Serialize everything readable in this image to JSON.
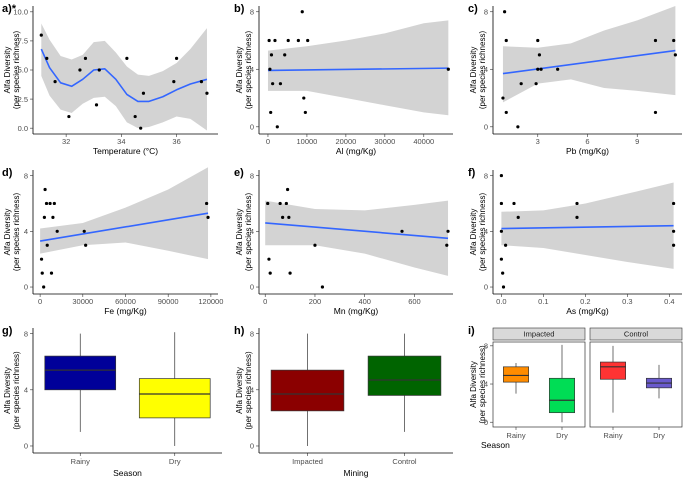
{
  "figure": {
    "ylabel_line1": "Alfa Diversity",
    "ylabel_line2": "(per species richness)",
    "fit_color": "#3366ff",
    "band_color": "#d3d3d3",
    "point_color": "#000000"
  },
  "chart_data": [
    {
      "id": "a",
      "panel_label": "a)*",
      "type": "scatter",
      "smooth": "loess",
      "xlabel": "Temperature (°C)",
      "xlim": [
        30.8,
        37.5
      ],
      "ylim": [
        -0.5,
        10.5
      ],
      "xticks": [
        32,
        34,
        36
      ],
      "yticks": [
        0,
        2.5,
        5,
        7.5,
        10
      ],
      "ytick_labels": [
        "0.0",
        "2.5",
        "5.0",
        "7.5",
        "10.0"
      ],
      "points": [
        [
          31.1,
          8
        ],
        [
          31.3,
          6
        ],
        [
          31.6,
          4
        ],
        [
          32.1,
          1
        ],
        [
          32.5,
          5
        ],
        [
          32.7,
          6
        ],
        [
          33.1,
          2
        ],
        [
          33.2,
          5
        ],
        [
          34.2,
          6
        ],
        [
          34.5,
          1
        ],
        [
          34.7,
          0
        ],
        [
          34.8,
          3
        ],
        [
          35.9,
          4
        ],
        [
          36.0,
          6
        ],
        [
          36.9,
          4
        ],
        [
          37.1,
          3
        ]
      ],
      "fit": [
        [
          31.1,
          6.8
        ],
        [
          31.4,
          5.2
        ],
        [
          31.8,
          3.9
        ],
        [
          32.2,
          3.6
        ],
        [
          32.6,
          4.2
        ],
        [
          33.0,
          5.0
        ],
        [
          33.4,
          5.1
        ],
        [
          33.8,
          4.2
        ],
        [
          34.2,
          2.9
        ],
        [
          34.6,
          2.3
        ],
        [
          35.0,
          2.3
        ],
        [
          35.5,
          2.7
        ],
        [
          36.0,
          3.3
        ],
        [
          36.5,
          3.8
        ],
        [
          37.1,
          4.2
        ]
      ],
      "band_upper": [
        [
          31.1,
          9.0
        ],
        [
          31.4,
          7.6
        ],
        [
          31.8,
          6.2
        ],
        [
          32.2,
          5.9
        ],
        [
          32.6,
          6.3
        ],
        [
          33.0,
          7.4
        ],
        [
          33.4,
          7.5
        ],
        [
          33.8,
          6.5
        ],
        [
          34.2,
          5.3
        ],
        [
          34.6,
          4.6
        ],
        [
          35.0,
          4.5
        ],
        [
          35.5,
          4.9
        ],
        [
          36.0,
          5.6
        ],
        [
          36.5,
          6.8
        ],
        [
          37.1,
          8.6
        ]
      ],
      "band_lower": [
        [
          31.1,
          4.5
        ],
        [
          31.4,
          2.8
        ],
        [
          31.8,
          1.6
        ],
        [
          32.2,
          1.3
        ],
        [
          32.6,
          2.1
        ],
        [
          33.0,
          2.6
        ],
        [
          33.4,
          2.7
        ],
        [
          33.8,
          1.9
        ],
        [
          34.2,
          0.5
        ],
        [
          34.6,
          0.0
        ],
        [
          35.0,
          0.1
        ],
        [
          35.5,
          0.5
        ],
        [
          36.0,
          1.0
        ],
        [
          36.5,
          0.8
        ],
        [
          37.1,
          -0.2
        ]
      ]
    },
    {
      "id": "b",
      "panel_label": "b)",
      "type": "scatter",
      "smooth": "lm",
      "xlabel": "Al (mg/Kg)",
      "xlim": [
        -2300,
        47500
      ],
      "ylim": [
        -0.5,
        8.4
      ],
      "xticks": [
        0,
        10000,
        20000,
        30000,
        40000
      ],
      "yticks": [
        0,
        4,
        8
      ],
      "points": [
        [
          300,
          6
        ],
        [
          500,
          4
        ],
        [
          700,
          1
        ],
        [
          900,
          5
        ],
        [
          1200,
          3
        ],
        [
          1800,
          6
        ],
        [
          2400,
          0
        ],
        [
          3200,
          3
        ],
        [
          4300,
          5
        ],
        [
          5200,
          6
        ],
        [
          7800,
          6
        ],
        [
          8800,
          8
        ],
        [
          9200,
          2
        ],
        [
          9600,
          1
        ],
        [
          10200,
          6
        ],
        [
          46300,
          4
        ]
      ],
      "fit": [
        [
          0,
          3.92
        ],
        [
          46300,
          4.08
        ]
      ],
      "band_upper": [
        [
          0,
          5.3
        ],
        [
          10000,
          5.6
        ],
        [
          20000,
          6.0
        ],
        [
          30000,
          6.5
        ],
        [
          40000,
          7.2
        ],
        [
          46300,
          7.4
        ]
      ],
      "band_lower": [
        [
          0,
          2.5
        ],
        [
          10000,
          2.5
        ],
        [
          20000,
          2.0
        ],
        [
          30000,
          1.5
        ],
        [
          40000,
          1.0
        ],
        [
          46300,
          0.8
        ]
      ]
    },
    {
      "id": "c",
      "panel_label": "c)",
      "type": "scatter",
      "smooth": "lm",
      "xlabel": "Pb (mg/Kg)",
      "xlim": [
        0.3,
        11.7
      ],
      "ylim": [
        -0.5,
        8.4
      ],
      "xticks": [
        3,
        6,
        9
      ],
      "yticks": [
        0,
        4,
        8
      ],
      "points": [
        [
          0.9,
          2
        ],
        [
          1.0,
          8
        ],
        [
          1.1,
          1
        ],
        [
          1.1,
          6
        ],
        [
          1.8,
          0
        ],
        [
          2.0,
          3
        ],
        [
          2.9,
          3
        ],
        [
          3.0,
          4
        ],
        [
          3.0,
          6
        ],
        [
          3.1,
          5
        ],
        [
          3.2,
          4
        ],
        [
          4.2,
          4
        ],
        [
          10.1,
          6
        ],
        [
          10.1,
          1
        ],
        [
          11.2,
          6
        ],
        [
          11.3,
          5
        ]
      ],
      "fit": [
        [
          0.9,
          3.7
        ],
        [
          11.3,
          5.3
        ]
      ],
      "band_upper": [
        [
          0.9,
          5.6
        ],
        [
          3,
          5.5
        ],
        [
          5,
          5.8
        ],
        [
          7,
          6.7
        ],
        [
          9,
          7.4
        ],
        [
          11.3,
          8.4
        ]
      ],
      "band_lower": [
        [
          0.9,
          1.7
        ],
        [
          3,
          3.0
        ],
        [
          5,
          3.3
        ],
        [
          7,
          2.7
        ],
        [
          9,
          2.5
        ],
        [
          11.3,
          2.2
        ]
      ]
    },
    {
      "id": "d",
      "panel_label": "d)",
      "type": "scatter",
      "smooth": "lm",
      "xlabel": "Fe (mg/Kg)",
      "xlim": [
        -5000,
        125000
      ],
      "ylim": [
        -0.5,
        8.4
      ],
      "xticks": [
        0,
        30000,
        60000,
        90000,
        120000
      ],
      "yticks": [
        0,
        4,
        8
      ],
      "points": [
        [
          1000,
          2
        ],
        [
          1500,
          1
        ],
        [
          2500,
          0
        ],
        [
          3000,
          5
        ],
        [
          3500,
          7
        ],
        [
          4500,
          6
        ],
        [
          5000,
          3
        ],
        [
          7000,
          6
        ],
        [
          8000,
          1
        ],
        [
          9000,
          5
        ],
        [
          10000,
          6
        ],
        [
          12000,
          4
        ],
        [
          31000,
          4
        ],
        [
          32000,
          3
        ],
        [
          117000,
          6
        ],
        [
          118000,
          5
        ]
      ],
      "fit": [
        [
          0,
          3.3
        ],
        [
          118000,
          5.3
        ]
      ],
      "band_upper": [
        [
          0,
          4.2
        ],
        [
          30000,
          4.6
        ],
        [
          60000,
          5.7
        ],
        [
          90000,
          7.0
        ],
        [
          118000,
          8.6
        ]
      ],
      "band_lower": [
        [
          0,
          2.4
        ],
        [
          30000,
          3.0
        ],
        [
          60000,
          3.2
        ],
        [
          90000,
          2.6
        ],
        [
          118000,
          2.0
        ]
      ]
    },
    {
      "id": "e",
      "panel_label": "e)",
      "type": "scatter",
      "smooth": "lm",
      "xlabel": "Mn (mg/Kg)",
      "xlim": [
        -25,
        755
      ],
      "ylim": [
        -0.5,
        8.4
      ],
      "xticks": [
        0,
        200,
        400,
        600
      ],
      "yticks": [
        0,
        4,
        8
      ],
      "points": [
        [
          10,
          6
        ],
        [
          15,
          2
        ],
        [
          20,
          1
        ],
        [
          60,
          6
        ],
        [
          70,
          5
        ],
        [
          85,
          6
        ],
        [
          90,
          7
        ],
        [
          95,
          5
        ],
        [
          100,
          1
        ],
        [
          200,
          3
        ],
        [
          230,
          0
        ],
        [
          550,
          4
        ],
        [
          730,
          3
        ],
        [
          735,
          4
        ]
      ],
      "fit": [
        [
          0,
          4.6
        ],
        [
          735,
          3.5
        ]
      ],
      "band_upper": [
        [
          0,
          6.2
        ],
        [
          200,
          5.6
        ],
        [
          400,
          5.5
        ],
        [
          600,
          5.9
        ],
        [
          735,
          6.2
        ]
      ],
      "band_lower": [
        [
          0,
          3.0
        ],
        [
          200,
          3.0
        ],
        [
          400,
          2.4
        ],
        [
          600,
          1.4
        ],
        [
          735,
          0.8
        ]
      ]
    },
    {
      "id": "f",
      "panel_label": "f)",
      "type": "scatter",
      "smooth": "lm",
      "xlabel": "As (mg/Kg)",
      "xlim": [
        -0.02,
        0.43
      ],
      "ylim": [
        -0.5,
        8.4
      ],
      "xticks": [
        0,
        0.1,
        0.2,
        0.3,
        0.4
      ],
      "ytick_labels": [
        "0",
        "4",
        "8"
      ],
      "xtick_labels": [
        "0.0",
        "0.1",
        "0.2",
        "0.3",
        "0.4"
      ],
      "yticks": [
        0,
        4,
        8
      ],
      "points": [
        [
          0.0,
          8
        ],
        [
          0.0,
          6
        ],
        [
          0.0,
          4
        ],
        [
          0.0,
          2
        ],
        [
          0.003,
          1
        ],
        [
          0.005,
          0
        ],
        [
          0.01,
          3
        ],
        [
          0.03,
          6
        ],
        [
          0.04,
          5
        ],
        [
          0.18,
          6
        ],
        [
          0.18,
          5
        ],
        [
          0.41,
          6
        ],
        [
          0.41,
          4
        ],
        [
          0.41,
          3
        ]
      ],
      "fit": [
        [
          0.0,
          4.2
        ],
        [
          0.41,
          4.4
        ]
      ],
      "band_upper": [
        [
          0.0,
          5.4
        ],
        [
          0.1,
          5.5
        ],
        [
          0.2,
          6.0
        ],
        [
          0.3,
          6.7
        ],
        [
          0.41,
          7.5
        ]
      ],
      "band_lower": [
        [
          0.0,
          3.0
        ],
        [
          0.1,
          2.8
        ],
        [
          0.2,
          2.3
        ],
        [
          0.3,
          1.8
        ],
        [
          0.41,
          1.3
        ]
      ]
    },
    {
      "id": "g",
      "panel_label": "g)",
      "type": "boxplot",
      "xlabel": "Season",
      "ylim": [
        -0.5,
        8.4
      ],
      "yticks": [
        0,
        4,
        8
      ],
      "boxes": [
        {
          "category": "Rainy",
          "whisker_low": 1,
          "q1": 4,
          "median": 5.4,
          "q3": 6.4,
          "whisker_high": 8,
          "fill": "#000099"
        },
        {
          "category": "Dry",
          "whisker_low": 0,
          "q1": 2,
          "median": 3.7,
          "q3": 4.8,
          "whisker_high": 8.1,
          "fill": "#ffff00"
        }
      ]
    },
    {
      "id": "h",
      "panel_label": "h)",
      "type": "boxplot",
      "xlabel": "Mining",
      "ylim": [
        -0.5,
        8.4
      ],
      "yticks": [
        0,
        4,
        8
      ],
      "boxes": [
        {
          "category": "Impacted",
          "whisker_low": 0,
          "q1": 2.5,
          "median": 3.7,
          "q3": 5.4,
          "whisker_high": 8,
          "fill": "#8b0000"
        },
        {
          "category": "Control",
          "whisker_low": 1,
          "q1": 3.6,
          "median": 4.7,
          "q3": 6.4,
          "whisker_high": 8,
          "fill": "#006400"
        }
      ]
    },
    {
      "id": "i",
      "panel_label": "i)",
      "type": "boxplot",
      "xlabel": "Season",
      "ylim": [
        -0.5,
        8.4
      ],
      "yticks": [
        0,
        4,
        8
      ],
      "facets": [
        {
          "strip": "Impacted",
          "boxes": [
            {
              "category": "Rainy",
              "whisker_low": 3,
              "q1": 4.2,
              "median": 4.9,
              "q3": 5.8,
              "whisker_high": 6.2,
              "fill": "#ff8c00"
            },
            {
              "category": "Dry",
              "whisker_low": 0,
              "q1": 1,
              "median": 2.3,
              "q3": 4.6,
              "whisker_high": 8.1,
              "fill": "#00dd55"
            }
          ]
        },
        {
          "strip": "Control",
          "boxes": [
            {
              "category": "Rainy",
              "whisker_low": 1,
              "q1": 4.5,
              "median": 5.8,
              "q3": 6.3,
              "whisker_high": 8,
              "fill": "#ff3333"
            },
            {
              "category": "Dry",
              "whisker_low": 2.5,
              "q1": 3.6,
              "median": 4.1,
              "q3": 4.6,
              "whisker_high": 6,
              "fill": "#6a5acd"
            }
          ]
        }
      ]
    }
  ]
}
